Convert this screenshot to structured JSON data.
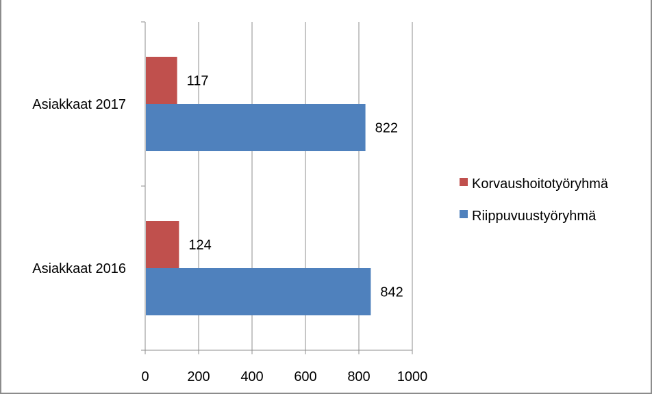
{
  "chart_data": {
    "type": "bar",
    "orientation": "horizontal",
    "categories": [
      "Asiakkaat 2017",
      "Asiakkaat 2016"
    ],
    "series": [
      {
        "name": "Korvaushoitotyöryhmä",
        "color": "#c0504d",
        "values": [
          117,
          124
        ]
      },
      {
        "name": "Riippuvuustyöryhmä",
        "color": "#4f81bd",
        "values": [
          822,
          842
        ]
      }
    ],
    "x_ticks": [
      "0",
      "200",
      "400",
      "600",
      "800",
      "1000"
    ],
    "xlim": [
      0,
      1000
    ],
    "grid": true,
    "legend_position": "right",
    "data_labels": true
  }
}
